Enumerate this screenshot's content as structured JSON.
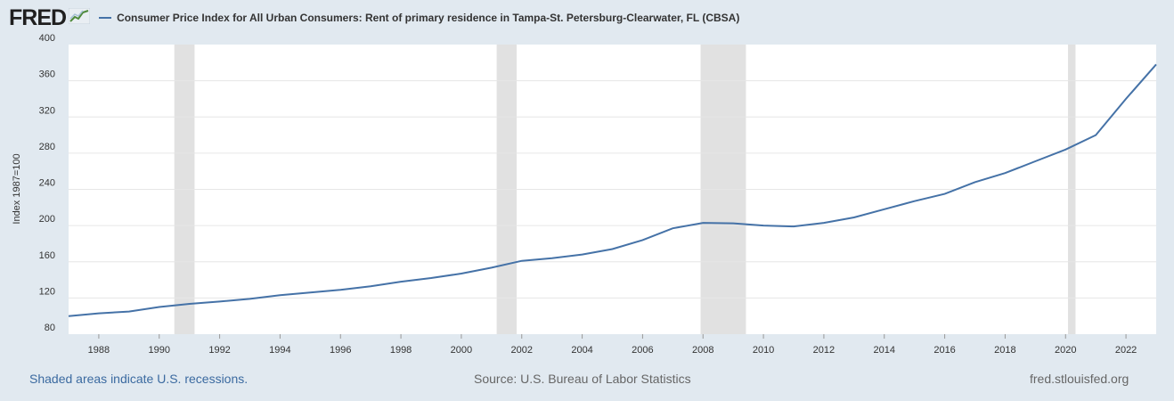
{
  "header": {
    "logo_text": "FRED",
    "legend_label": "Consumer Price Index for All Urban Consumers: Rent of primary residence in Tampa-St. Petersburg-Clearwater, FL (CBSA)"
  },
  "footer": {
    "recessions_note": "Shaded areas indicate U.S. recessions.",
    "source": "Source: U.S. Bureau of Labor Statistics",
    "site": "fred.stlouisfed.org"
  },
  "colors": {
    "line": "#4572a7",
    "recession": "#e1e1e1",
    "grid": "#e6e6e6",
    "background": "#e1e9f0"
  },
  "chart_data": {
    "type": "line",
    "title": "",
    "xlabel": "",
    "ylabel": "Index 1987=100",
    "xlim": [
      1987,
      2023
    ],
    "ylim": [
      80,
      400
    ],
    "yticks": [
      80,
      120,
      160,
      200,
      240,
      280,
      320,
      360,
      400
    ],
    "xticks": [
      1988,
      1990,
      1992,
      1994,
      1996,
      1998,
      2000,
      2002,
      2004,
      2006,
      2008,
      2010,
      2012,
      2014,
      2016,
      2018,
      2020,
      2022
    ],
    "grid": true,
    "recessions": [
      [
        1990.5,
        1991.17
      ],
      [
        2001.17,
        2001.83
      ],
      [
        2007.92,
        2009.42
      ],
      [
        2020.08,
        2020.33
      ]
    ],
    "series": [
      {
        "name": "Consumer Price Index for All Urban Consumers: Rent of primary residence in Tampa-St. Petersburg-Clearwater, FL (CBSA)",
        "x": [
          1987,
          1988,
          1989,
          1990,
          1991,
          1992,
          1993,
          1994,
          1995,
          1996,
          1997,
          1998,
          1999,
          2000,
          2001,
          2002,
          2003,
          2004,
          2005,
          2006,
          2007,
          2008,
          2009,
          2010,
          2011,
          2012,
          2013,
          2014,
          2015,
          2016,
          2017,
          2018,
          2019,
          2020,
          2021,
          2022,
          2023
        ],
        "values": [
          100,
          103,
          105,
          110,
          113.5,
          116,
          119,
          123,
          126,
          129,
          133,
          138,
          142,
          147,
          153.5,
          161,
          164,
          168,
          174,
          184,
          197,
          203,
          202.5,
          200,
          199,
          203,
          209,
          218,
          227,
          235,
          248,
          258,
          271,
          284,
          300,
          340,
          378
        ]
      }
    ]
  }
}
